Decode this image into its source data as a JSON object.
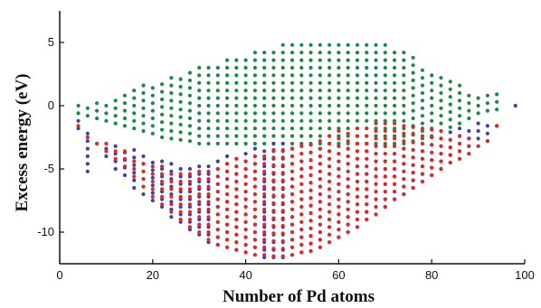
{
  "chart_data": {
    "type": "scatter",
    "title": "",
    "xlabel": "Number of Pd atoms",
    "ylabel": "Excess energy (eV)",
    "xlim": [
      0,
      100
    ],
    "ylim": [
      -12.5,
      7.5
    ],
    "x_ticks": [
      0,
      20,
      40,
      60,
      80,
      100
    ],
    "y_ticks": [
      -10,
      -5,
      0,
      5
    ],
    "grid": false,
    "legend": "none",
    "colors": {
      "green": "#1a8a4a",
      "blue": "#3f3fb0",
      "red": "#e02828"
    },
    "x_columns": [
      4,
      6,
      8,
      10,
      12,
      14,
      16,
      18,
      20,
      22,
      24,
      26,
      28,
      30,
      32,
      34,
      36,
      38,
      40,
      42,
      44,
      46,
      48,
      50,
      52,
      54,
      56,
      58,
      60,
      62,
      64,
      66,
      68,
      70,
      72,
      74,
      76,
      78,
      80,
      82,
      84,
      86,
      88,
      90,
      92,
      94,
      96,
      98
    ],
    "series": [
      {
        "color_key": "green",
        "y_ranges": [
          [
            -0.6,
            0.2
          ],
          [
            -0.8,
            0.2
          ],
          [
            -1.0,
            0.3
          ],
          [
            -1.2,
            0.5
          ],
          [
            -1.4,
            0.7
          ],
          [
            -1.6,
            1.0
          ],
          [
            -1.8,
            1.3
          ],
          [
            -2.0,
            1.6
          ],
          [
            -2.2,
            1.8
          ],
          [
            -2.5,
            2.0
          ],
          [
            -2.6,
            2.2
          ],
          [
            -2.7,
            2.5
          ],
          [
            -2.8,
            2.7
          ],
          [
            -3.0,
            3.0
          ],
          [
            -3.0,
            3.2
          ],
          [
            -3.0,
            3.4
          ],
          [
            -3.0,
            3.6
          ],
          [
            -3.0,
            3.8
          ],
          [
            -3.0,
            4.0
          ],
          [
            -3.0,
            4.2
          ],
          [
            -3.0,
            4.4
          ],
          [
            -3.0,
            4.6
          ],
          [
            -3.0,
            4.8
          ],
          [
            -3.0,
            4.9
          ],
          [
            -3.0,
            5.0
          ],
          [
            -3.0,
            5.1
          ],
          [
            -3.0,
            5.2
          ],
          [
            -3.0,
            5.2
          ],
          [
            -3.0,
            5.1
          ],
          [
            -3.0,
            5.2
          ],
          [
            -3.0,
            5.2
          ],
          [
            -3.0,
            5.1
          ],
          [
            -3.0,
            5.0
          ],
          [
            -3.0,
            5.3
          ],
          [
            -3.0,
            4.5
          ],
          [
            -3.0,
            4.3
          ],
          [
            -2.8,
            3.8
          ],
          [
            -2.6,
            3.3
          ],
          [
            -2.4,
            2.8
          ],
          [
            -2.0,
            2.3
          ],
          [
            -1.7,
            1.9
          ],
          [
            -1.4,
            1.6
          ],
          [
            -1.0,
            1.3
          ],
          [
            -0.6,
            0.9
          ],
          [
            -0.4,
            0.9
          ],
          [
            -0.3,
            1.0
          ],
          [
            0,
            0
          ],
          [
            0.0,
            0.0
          ]
        ]
      },
      {
        "color_key": "blue",
        "y_ranges": [
          [
            -1.8,
            -1.2
          ],
          [
            -5.2,
            -1.8
          ],
          [
            -3.0,
            -2.5
          ],
          [
            -4.0,
            -3.0
          ],
          [
            -5.0,
            -2.8
          ],
          [
            -5.5,
            -3.2
          ],
          [
            -6.5,
            -3.5
          ],
          [
            -7.0,
            -3.8
          ],
          [
            -7.5,
            -4.0
          ],
          [
            -8.0,
            -4.2
          ],
          [
            -8.8,
            -4.5
          ],
          [
            -9.2,
            -4.8
          ],
          [
            -9.8,
            -5.0
          ],
          [
            -10.2,
            -4.8
          ],
          [
            -10.8,
            -4.5
          ],
          [
            -11.0,
            -4.2
          ],
          [
            -11.2,
            -4.0
          ],
          [
            -11.4,
            -3.8
          ],
          [
            -11.6,
            -3.6
          ],
          [
            -11.8,
            -3.4
          ],
          [
            -12.0,
            -3.2
          ],
          [
            -12.0,
            -3.0
          ],
          [
            -12.0,
            -3.0
          ],
          [
            -11.8,
            -3.0
          ],
          [
            -11.6,
            -3.0
          ],
          [
            -11.5,
            -3.0
          ],
          [
            -11.2,
            -3.0
          ],
          [
            -10.8,
            -3.0
          ],
          [
            -10.4,
            -3.0
          ],
          [
            -10.0,
            -3.0
          ],
          [
            -9.6,
            -3.0
          ],
          [
            -9.0,
            -3.0
          ],
          [
            -8.6,
            -3.0
          ],
          [
            -8.0,
            -3.0
          ],
          [
            -7.4,
            -3.0
          ],
          [
            -7.0,
            -3.0
          ],
          [
            -6.5,
            -3.0
          ],
          [
            -6.0,
            -2.8
          ],
          [
            -5.5,
            -2.5
          ],
          [
            -5.0,
            -2.2
          ],
          [
            -4.5,
            -2.0
          ],
          [
            -4.2,
            -1.8
          ],
          [
            -3.8,
            -1.6
          ],
          [
            -3.2,
            -1.4
          ],
          [
            -2.8,
            -1.2
          ],
          [
            -1.6,
            -1.2
          ],
          [
            0,
            0
          ],
          [
            0.0,
            0.0
          ]
        ]
      },
      {
        "color_key": "red",
        "y_ranges": [
          [
            -1.6,
            -1.4
          ],
          [
            -2.5,
            -2.0
          ],
          [
            -3.0,
            -2.6
          ],
          [
            -3.6,
            -3.0
          ],
          [
            -4.2,
            -3.2
          ],
          [
            -4.8,
            -3.6
          ],
          [
            -5.6,
            -4.0
          ],
          [
            -6.4,
            -4.4
          ],
          [
            -7.2,
            -4.6
          ],
          [
            -7.8,
            -4.8
          ],
          [
            -8.4,
            -5.0
          ],
          [
            -9.0,
            -5.2
          ],
          [
            -9.6,
            -5.2
          ],
          [
            -10.0,
            -5.0
          ],
          [
            -10.6,
            -4.8
          ],
          [
            -11.0,
            -4.6
          ],
          [
            -11.2,
            -4.4
          ],
          [
            -11.4,
            -4.2
          ],
          [
            -11.6,
            -4.0
          ],
          [
            -11.8,
            -3.8
          ],
          [
            -11.8,
            -3.6
          ],
          [
            -11.9,
            -3.4
          ],
          [
            -11.9,
            -3.2
          ],
          [
            -11.8,
            -3.0
          ],
          [
            -11.6,
            -2.8
          ],
          [
            -11.5,
            -2.6
          ],
          [
            -11.2,
            -2.4
          ],
          [
            -10.8,
            -2.2
          ],
          [
            -10.4,
            -2.0
          ],
          [
            -10.0,
            -1.8
          ],
          [
            -9.6,
            -1.6
          ],
          [
            -9.0,
            -1.4
          ],
          [
            -8.6,
            -1.2
          ],
          [
            -8.0,
            -1.0
          ],
          [
            -7.4,
            -1.0
          ],
          [
            -7.0,
            -1.2
          ],
          [
            -6.5,
            -1.4
          ],
          [
            -6.0,
            -1.6
          ],
          [
            -5.5,
            -1.8
          ],
          [
            -5.0,
            -2.0
          ],
          [
            -4.5,
            -2.2
          ],
          [
            -4.2,
            -2.4
          ],
          [
            -3.8,
            -2.6
          ],
          [
            -3.2,
            -2.8
          ],
          [
            -2.8,
            -2.8
          ],
          [
            -1.6,
            -1.4
          ],
          [
            0,
            0
          ],
          [
            0.0,
            0.0
          ]
        ]
      }
    ]
  }
}
